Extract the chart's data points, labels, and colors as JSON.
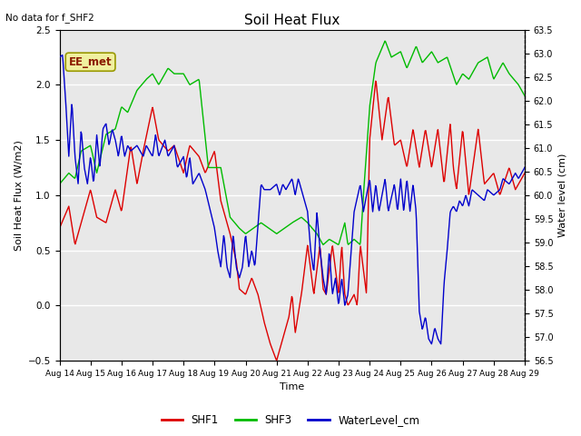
{
  "title": "Soil Heat Flux",
  "top_left_text": "No data for f_SHF2",
  "annotation_box": "EE_met",
  "xlabel": "Time",
  "ylabel_left": "Soil Heat Flux (W/m2)",
  "ylabel_right": "Water level (cm)",
  "ylim_left": [
    -0.5,
    2.5
  ],
  "ylim_right": [
    56.5,
    63.5
  ],
  "background_color": "#e8e8e8",
  "figure_color": "#ffffff",
  "grid_color": "#ffffff",
  "shf1_color": "#dd0000",
  "shf3_color": "#00bb00",
  "water_color": "#0000cc",
  "xtick_labels": [
    "Aug 14",
    "Aug 15",
    "Aug 16",
    "Aug 17",
    "Aug 18",
    "Aug 19",
    "Aug 20",
    "Aug 21",
    "Aug 22",
    "Aug 23",
    "Aug 24",
    "Aug 25",
    "Aug 26",
    "Aug 27",
    "Aug 28",
    "Aug 29"
  ]
}
